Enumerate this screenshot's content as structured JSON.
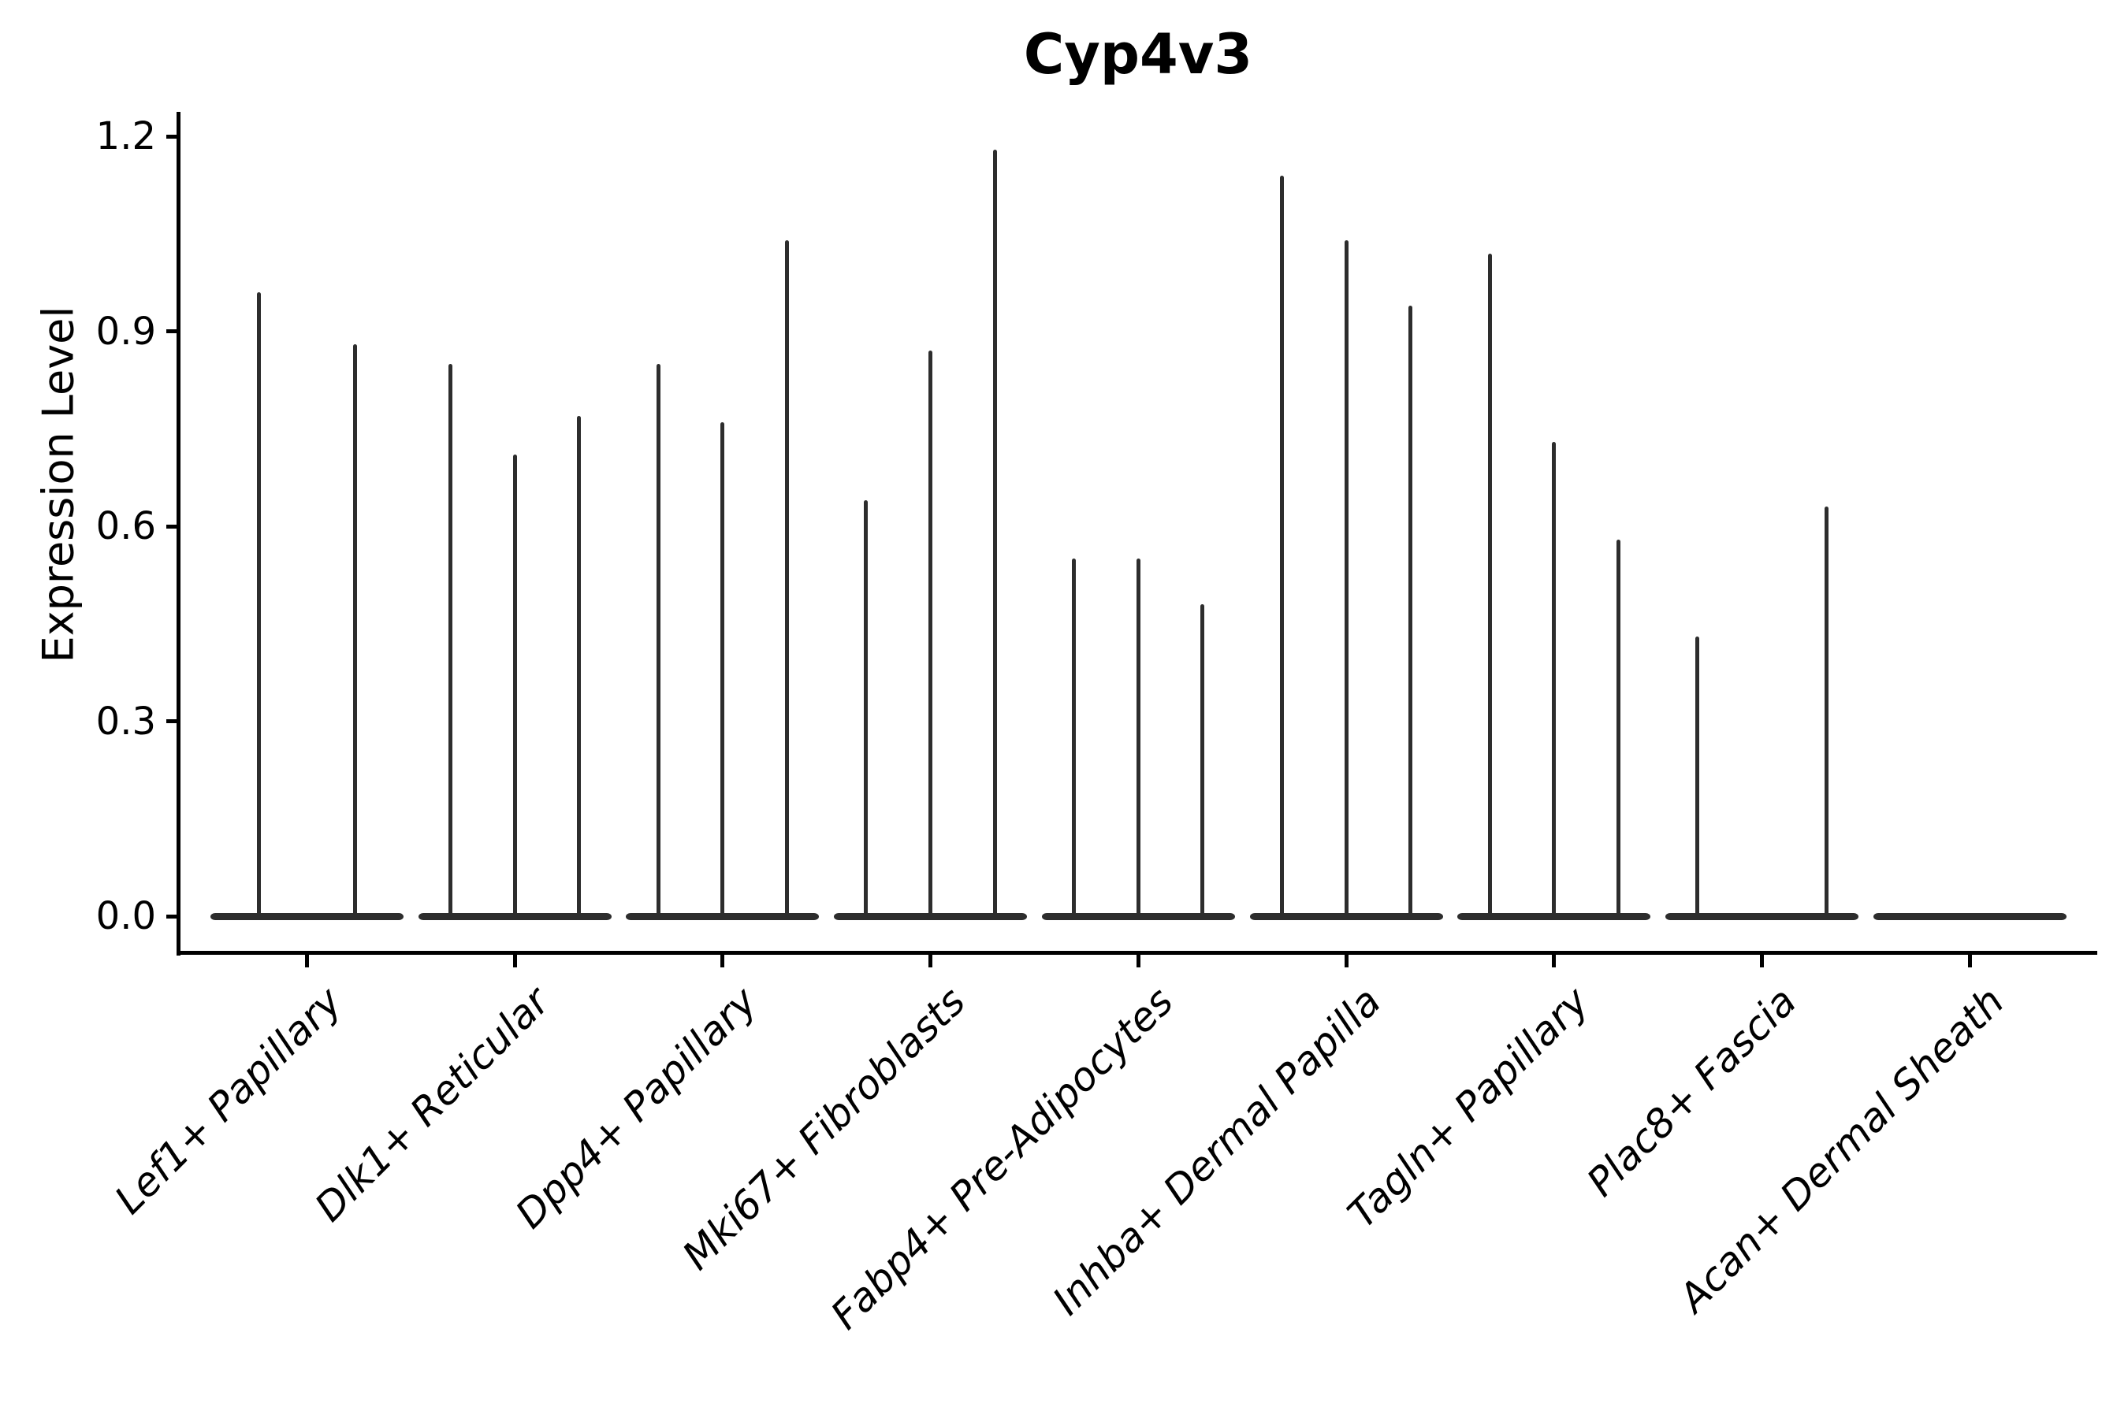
{
  "colors": {
    "background": "#ffffff",
    "axis": "#000000",
    "text": "#000000",
    "violin": "#2d2d2d"
  },
  "chart_data": {
    "type": "violin",
    "title": "Cyp4v3",
    "xlabel": "",
    "ylabel": "Expression Level",
    "ylim": [
      0,
      1.2
    ],
    "yticks": [
      0.0,
      0.3,
      0.6,
      0.9,
      1.2
    ],
    "ytick_labels": [
      "0.0",
      "0.3",
      "0.6",
      "0.9",
      "1.2"
    ],
    "grid": false,
    "legend": "none",
    "xtick_label_rotation_deg": 45,
    "categories": [
      "Lef1+ Papillary",
      "Dlk1+ Reticular",
      "Dpp4+ Papillary",
      "Mki67+ Fibroblasts",
      "Fabp4+ Pre-Adipocytes",
      "Inhba+ Dermal Papilla",
      "Tagln+ Papillary",
      "Plac8+ Fascia",
      "Acan+ Dermal Sheath"
    ],
    "groups": [
      {
        "label": "Lef1+ Papillary",
        "violin_peaks": [
          0.96,
          0.88
        ]
      },
      {
        "label": "Dlk1+ Reticular",
        "violin_peaks": [
          0.85,
          0.71,
          0.77
        ]
      },
      {
        "label": "Dpp4+ Papillary",
        "violin_peaks": [
          0.85,
          0.76,
          1.04
        ]
      },
      {
        "label": "Mki67+ Fibroblasts",
        "violin_peaks": [
          0.64,
          0.87,
          1.18
        ]
      },
      {
        "label": "Fabp4+ Pre-Adipocytes",
        "violin_peaks": [
          0.55,
          0.55,
          0.48
        ]
      },
      {
        "label": "Inhba+ Dermal Papilla",
        "violin_peaks": [
          1.14,
          1.04,
          0.94
        ]
      },
      {
        "label": "Tagln+ Papillary",
        "violin_peaks": [
          1.02,
          0.73,
          0.58
        ]
      },
      {
        "label": "Plac8+ Fascia",
        "violin_peaks": [
          0.43,
          0.0,
          0.63
        ]
      },
      {
        "label": "Acan+ Dermal Sheath",
        "violin_peaks": [
          0.0,
          0.0,
          0.0
        ]
      }
    ]
  }
}
